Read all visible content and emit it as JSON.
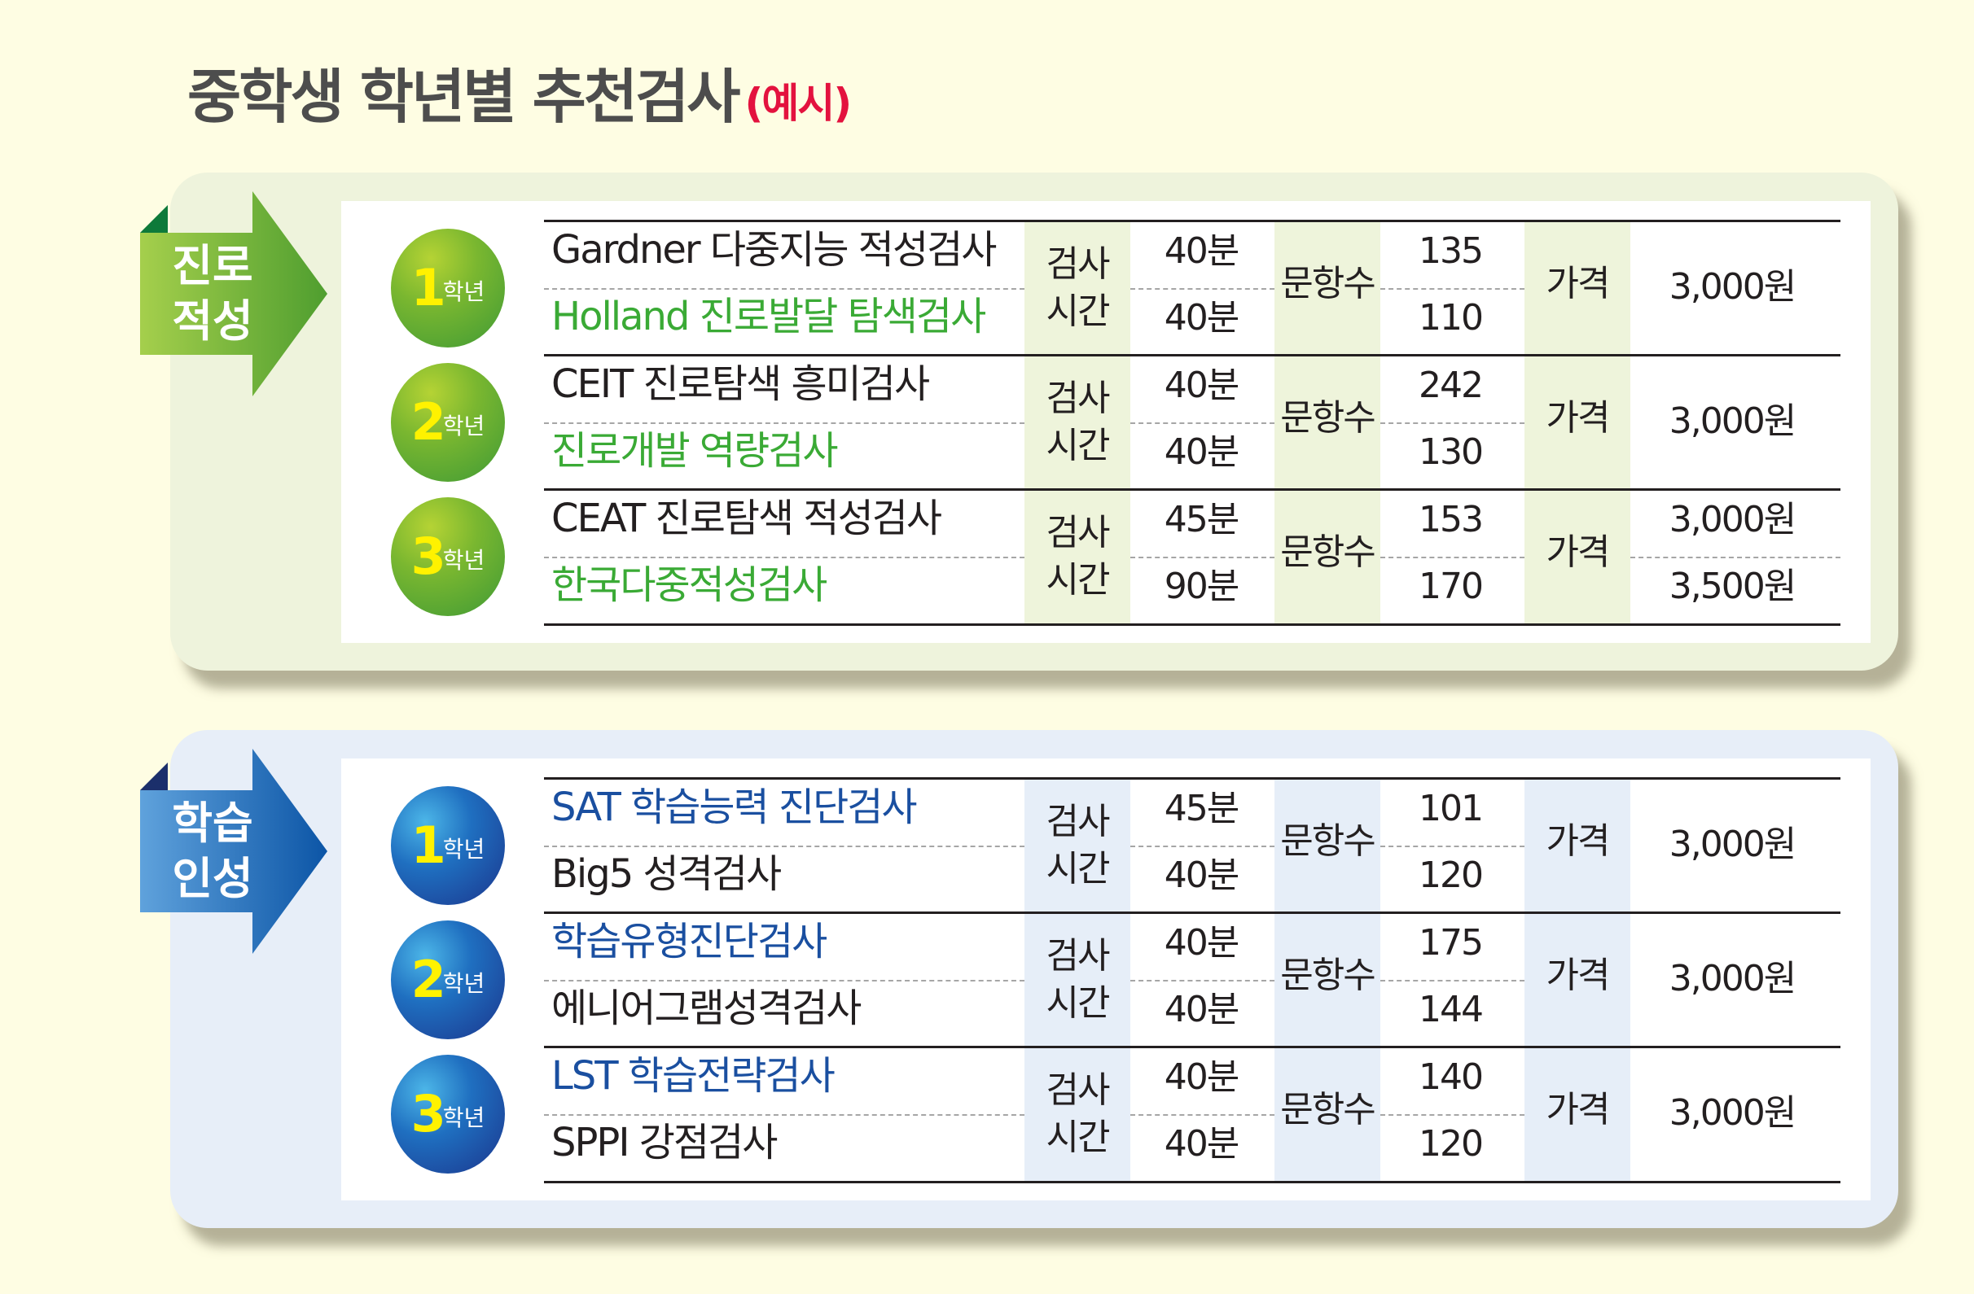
{
  "title": {
    "main": "중학생 학년별 추천검사",
    "sub": "(예시)"
  },
  "labels": {
    "time": "검사 시간",
    "time_line1": "검사",
    "time_line2": "시간",
    "count": "문항수",
    "price": "가격",
    "grade_unit": "학년"
  },
  "colors": {
    "green_accent": "#3aaa35",
    "blue_accent": "#1a4fa0",
    "grade_number": "#fff200",
    "title_sub": "#e3123e"
  },
  "sections": [
    {
      "label_line1": "진로",
      "label_line2": "적성",
      "theme": "green",
      "grades": [
        {
          "grade": "1",
          "tests": [
            {
              "name": "Gardner 다중지능 적성검사",
              "time": "40분",
              "count": "135",
              "accent": false
            },
            {
              "name": "Holland 진로발달 탐색검사",
              "time": "40분",
              "count": "110",
              "accent": true
            }
          ],
          "prices": [
            "3,000원"
          ]
        },
        {
          "grade": "2",
          "tests": [
            {
              "name": "CEIT 진로탐색 흥미검사",
              "time": "40분",
              "count": "242",
              "accent": false
            },
            {
              "name": "진로개발 역량검사",
              "time": "40분",
              "count": "130",
              "accent": true
            }
          ],
          "prices": [
            "3,000원"
          ]
        },
        {
          "grade": "3",
          "tests": [
            {
              "name": "CEAT 진로탐색 적성검사",
              "time": "45분",
              "count": "153",
              "accent": false
            },
            {
              "name": "한국다중적성검사",
              "time": "90분",
              "count": "170",
              "accent": true
            }
          ],
          "prices": [
            "3,000원",
            "3,500원"
          ]
        }
      ]
    },
    {
      "label_line1": "학습",
      "label_line2": "인성",
      "theme": "blue",
      "grades": [
        {
          "grade": "1",
          "tests": [
            {
              "name": "SAT 학습능력 진단검사",
              "time": "45분",
              "count": "101",
              "accent": true
            },
            {
              "name": "Big5 성격검사",
              "time": "40분",
              "count": "120",
              "accent": false
            }
          ],
          "prices": [
            "3,000원"
          ]
        },
        {
          "grade": "2",
          "tests": [
            {
              "name": "학습유형진단검사",
              "time": "40분",
              "count": "175",
              "accent": true
            },
            {
              "name": "에니어그램성격검사",
              "time": "40분",
              "count": "144",
              "accent": false
            }
          ],
          "prices": [
            "3,000원"
          ]
        },
        {
          "grade": "3",
          "tests": [
            {
              "name": "LST 학습전략검사",
              "time": "40분",
              "count": "140",
              "accent": true
            },
            {
              "name": "SPPI 강점검사",
              "time": "40분",
              "count": "120",
              "accent": false
            }
          ],
          "prices": [
            "3,000원"
          ]
        }
      ]
    }
  ]
}
